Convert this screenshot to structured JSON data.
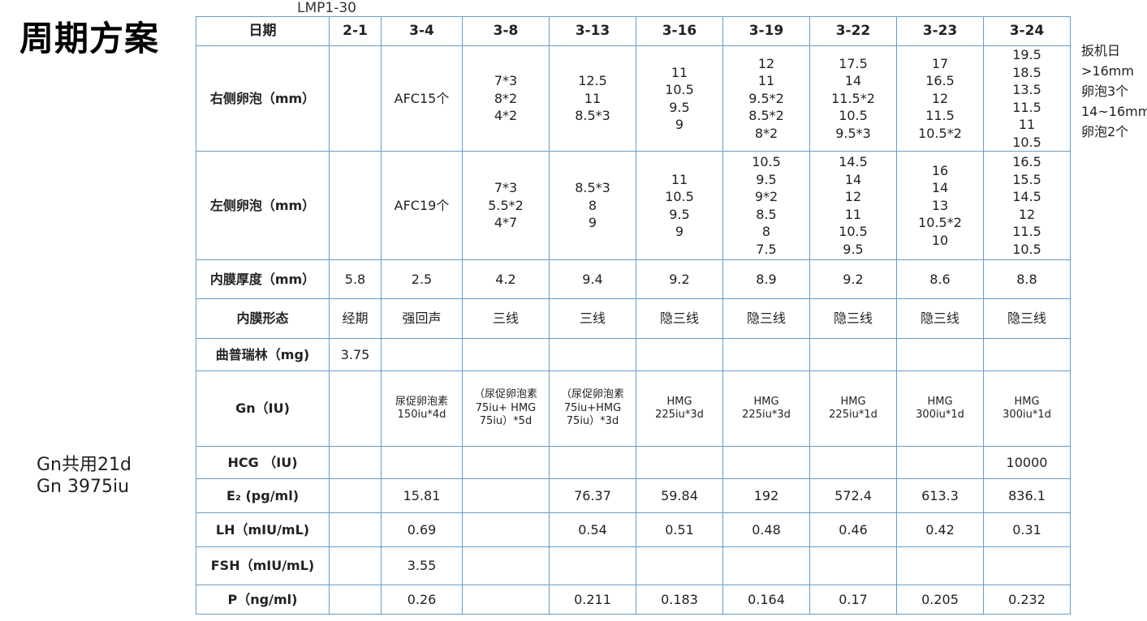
{
  "title": "周期方案",
  "lmp_label": "LMP1-30",
  "notes": [
    "扳机日",
    ">16mm",
    "卵泡3个",
    "14~16mm",
    "卵泡2个"
  ],
  "gn_summary": [
    "Gn共用21d",
    "Gn 3975iu"
  ],
  "table": {
    "date_label": "日期",
    "dates": [
      "2-1",
      "3-4",
      "3-8",
      "3-13",
      "3-16",
      "3-19",
      "3-22",
      "3-23",
      "3-24"
    ],
    "rows": [
      {
        "label": "右侧卵泡（mm）",
        "cells": [
          "",
          "AFC15个",
          "7*3\n8*2\n4*2",
          "12.5\n11\n8.5*3",
          "11\n10.5\n9.5\n9",
          "12\n11\n9.5*2\n8.5*2\n8*2",
          "17.5\n14\n11.5*2\n10.5\n9.5*3",
          "17\n16.5\n12\n11.5\n10.5*2",
          "19.5\n18.5\n13.5\n11.5\n11\n10.5"
        ]
      },
      {
        "label": "左侧卵泡（mm）",
        "cells": [
          "",
          "AFC19个",
          "7*3\n5.5*2\n4*7",
          "8.5*3\n8\n9",
          "11\n10.5\n9.5\n9",
          "10.5\n9.5\n9*2\n8.5\n8\n7.5",
          "14.5\n14\n12\n11\n10.5\n9.5",
          "16\n14\n13\n10.5*2\n10",
          "16.5\n15.5\n14.5\n12\n11.5\n10.5"
        ]
      },
      {
        "label": "内膜厚度（mm）",
        "cells": [
          "5.8",
          "2.5",
          "4.2",
          "9.4",
          "9.2",
          "8.9",
          "9.2",
          "8.6",
          "8.8"
        ]
      },
      {
        "label": "内膜形态",
        "cells": [
          "经期",
          "强回声",
          "三线",
          "三线",
          "隐三线",
          "隐三线",
          "隐三线",
          "隐三线",
          "隐三线"
        ]
      },
      {
        "label": "曲普瑞林（mg)",
        "cells": [
          "3.75",
          "",
          "",
          "",
          "",
          "",
          "",
          "",
          ""
        ]
      },
      {
        "label": "Gn（IU)",
        "cells": [
          "",
          "尿促卵泡素\n150iu*4d",
          "（尿促卵泡素\n75iu+ HMG\n75iu）*5d",
          "（尿促卵泡素\n75iu+HMG\n75iu）*3d",
          "HMG\n225iu*3d",
          "HMG\n225iu*3d",
          "HMG\n225iu*1d",
          "HMG\n300iu*1d",
          "HMG\n300iu*1d"
        ]
      },
      {
        "label": "HCG （IU)",
        "cells": [
          "",
          "",
          "",
          "",
          "",
          "",
          "",
          "",
          "10000"
        ]
      },
      {
        "label": "E₂ (pg/ml)",
        "cells": [
          "",
          "15.81",
          "",
          "76.37",
          "59.84",
          "192",
          "572.4",
          "613.3",
          "836.1"
        ]
      },
      {
        "label": "LH（mIU/mL)",
        "cells": [
          "",
          "0.69",
          "",
          "0.54",
          "0.51",
          "0.48",
          "0.46",
          "0.42",
          "0.31"
        ]
      },
      {
        "label": "FSH（mIU/mL)",
        "cells": [
          "",
          "3.55",
          "",
          "",
          "",
          "",
          "",
          "",
          ""
        ]
      },
      {
        "label": "P（ng/ml)",
        "cells": [
          "",
          "0.26",
          "",
          "0.211",
          "0.183",
          "0.164",
          "0.17",
          "0.205",
          "0.232"
        ]
      }
    ]
  }
}
